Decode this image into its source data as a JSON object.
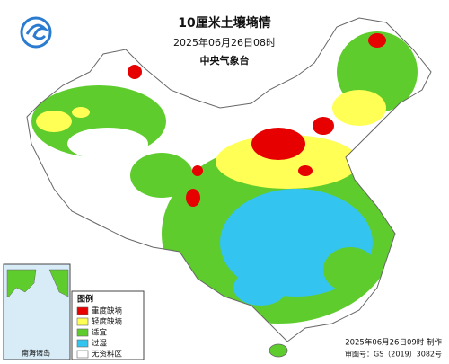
{
  "header": {
    "title": "10厘米土壤墒情",
    "time": "2025年06月26日08时",
    "agency": "中央气象台"
  },
  "legend": {
    "title": "图例",
    "items": [
      {
        "label": "重度缺墒",
        "color": "#e60000"
      },
      {
        "label": "轻度缺墒",
        "color": "#ffff55"
      },
      {
        "label": "适宜",
        "color": "#5fcc2e"
      },
      {
        "label": "过湿",
        "color": "#33c4f0"
      },
      {
        "label": "无资料区",
        "color": "#ffffff"
      }
    ]
  },
  "inset": {
    "label": "南海诸岛"
  },
  "footer": {
    "made": "2025年06月26日09时 制作",
    "approval": "审图号：GS（2019）3082号"
  }
}
